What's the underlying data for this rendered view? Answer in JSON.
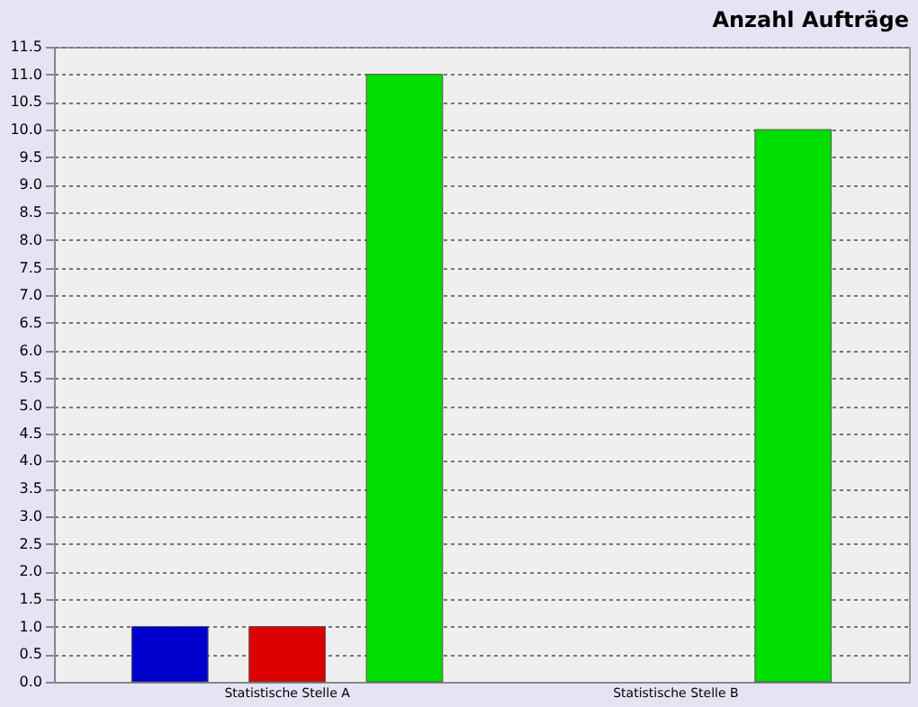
{
  "chart_data": {
    "type": "bar",
    "title": "Anzahl Aufträge",
    "categories": [
      "Statistische Stelle A",
      "Statistische Stelle B"
    ],
    "series": [
      {
        "color": "#0000cc",
        "values": [
          1,
          null
        ]
      },
      {
        "color": "#dd0000",
        "values": [
          1,
          null
        ]
      },
      {
        "color": "#00dd00",
        "values": [
          11,
          10
        ]
      }
    ],
    "ylim": [
      0,
      11.5
    ],
    "yticks": [
      {
        "value": 0,
        "label": "0.0"
      },
      0.5,
      {
        "value": 1,
        "label": "1.0"
      },
      1.5,
      {
        "value": 2,
        "label": "2.0"
      },
      2.5,
      {
        "value": 3,
        "label": "3.0"
      },
      3.5,
      {
        "value": 4,
        "label": "4.0"
      },
      4.5,
      {
        "value": 5,
        "label": "5.0"
      },
      5.5,
      {
        "value": 6,
        "label": "6.0"
      },
      6.5,
      {
        "value": 7,
        "label": "7.0"
      },
      7.5,
      {
        "value": 8,
        "label": "8.0"
      },
      8.5,
      {
        "value": 9,
        "label": "9.0"
      },
      9.5,
      {
        "value": 10,
        "label": "10.0"
      },
      10.5,
      {
        "value": 11,
        "label": "11.0"
      },
      11.5
    ],
    "grid": "y",
    "legend": false
  }
}
